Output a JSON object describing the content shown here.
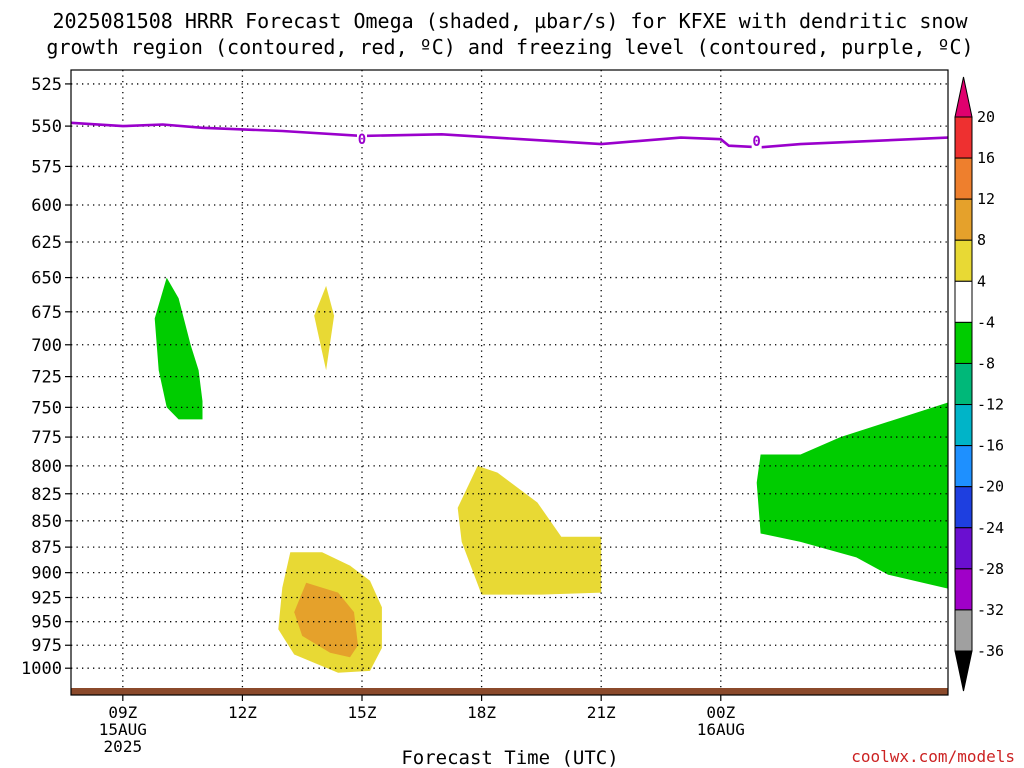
{
  "chart_data": {
    "type": "contour",
    "title_lines": [
      "2025081508 HRRR Forecast Omega (shaded, µbar/s) for KFXE with dendritic snow",
      "growth region (contoured, red, ºC) and freezing level (contoured, purple, ºC)"
    ],
    "xlabel": "Forecast Time (UTC)",
    "credit": "coolwx.com/models",
    "x_domain_hours": [
      7.7,
      29.7
    ],
    "x_ticks": [
      {
        "hour": 9,
        "lines": [
          "09Z",
          "15AUG",
          "2025"
        ]
      },
      {
        "hour": 12,
        "lines": [
          "12Z"
        ]
      },
      {
        "hour": 15,
        "lines": [
          "15Z"
        ]
      },
      {
        "hour": 18,
        "lines": [
          "18Z"
        ]
      },
      {
        "hour": 21,
        "lines": [
          "21Z"
        ]
      },
      {
        "hour": 24,
        "lines": [
          "00Z",
          "16AUG"
        ]
      }
    ],
    "y_axis": {
      "scale": "log",
      "range_mb": [
        1030,
        517
      ],
      "ticks_mb": [
        525,
        550,
        575,
        600,
        625,
        650,
        675,
        700,
        725,
        750,
        775,
        800,
        825,
        850,
        875,
        900,
        925,
        950,
        975,
        1000
      ]
    },
    "grid": true,
    "colorbar": {
      "labels": [
        "20",
        "16",
        "12",
        "8",
        "4",
        "-4",
        "-8",
        "-12",
        "-16",
        "-20",
        "-24",
        "-28",
        "-32",
        "-36"
      ],
      "colors": [
        "#e0006e",
        "#ee3030",
        "#ee7f2d",
        "#e5a12b",
        "#e8d934",
        "#ffffff",
        "#00cc00",
        "#00b879",
        "#00b4c8",
        "#1e90ff",
        "#1e3fe0",
        "#6a0fd0",
        "#a000c8",
        "#a0a0a0",
        "#000000"
      ]
    },
    "freezing_level": {
      "color": "#9a00cc",
      "contour_label": "0",
      "label_points": [
        [
          15.0,
          558
        ],
        [
          24.9,
          559
        ]
      ],
      "points": [
        [
          7.7,
          548
        ],
        [
          9.0,
          550
        ],
        [
          10.0,
          549
        ],
        [
          11.0,
          551
        ],
        [
          13.0,
          553
        ],
        [
          15.0,
          556
        ],
        [
          17.0,
          555
        ],
        [
          19.0,
          558
        ],
        [
          21.0,
          561
        ],
        [
          22.0,
          559
        ],
        [
          23.0,
          557
        ],
        [
          24.0,
          558
        ],
        [
          24.2,
          562
        ],
        [
          25.0,
          563
        ],
        [
          26.0,
          561
        ],
        [
          29.7,
          557
        ]
      ]
    },
    "omega_regions": [
      {
        "label": "-8",
        "color": "#00cc00",
        "points": [
          [
            10.1,
            650
          ],
          [
            10.4,
            665
          ],
          [
            10.7,
            700
          ],
          [
            10.9,
            720
          ],
          [
            11.0,
            745
          ],
          [
            11.0,
            760
          ],
          [
            10.4,
            760
          ],
          [
            10.1,
            750
          ],
          [
            9.9,
            720
          ],
          [
            9.8,
            680
          ]
        ]
      },
      {
        "label": "4",
        "color": "#e8d934",
        "points": [
          [
            14.1,
            656
          ],
          [
            14.3,
            678
          ],
          [
            14.1,
            720
          ],
          [
            13.8,
            678
          ]
        ]
      },
      {
        "label": "4",
        "color": "#e8d934",
        "points": [
          [
            17.9,
            800
          ],
          [
            18.4,
            806
          ],
          [
            19.4,
            833
          ],
          [
            20.0,
            865
          ],
          [
            21.0,
            865
          ],
          [
            21.0,
            920
          ],
          [
            19.5,
            922
          ],
          [
            18.0,
            922
          ],
          [
            17.5,
            870
          ],
          [
            17.4,
            838
          ]
        ]
      },
      {
        "label": "4",
        "color": "#e8d934",
        "points": [
          [
            13.2,
            880
          ],
          [
            14.0,
            880
          ],
          [
            14.7,
            893
          ],
          [
            15.2,
            908
          ],
          [
            15.5,
            935
          ],
          [
            15.5,
            978
          ],
          [
            15.2,
            1003
          ],
          [
            14.4,
            1005
          ],
          [
            13.3,
            985
          ],
          [
            12.9,
            958
          ],
          [
            13.0,
            915
          ]
        ]
      },
      {
        "label": "8",
        "color": "#e5a12b",
        "points": [
          [
            13.6,
            910
          ],
          [
            14.4,
            920
          ],
          [
            14.8,
            940
          ],
          [
            14.9,
            975
          ],
          [
            14.7,
            988
          ],
          [
            14.2,
            983
          ],
          [
            13.5,
            965
          ],
          [
            13.3,
            940
          ]
        ]
      },
      {
        "label": "-8",
        "color": "#00cc00",
        "points": [
          [
            25.0,
            790
          ],
          [
            25.8,
            790
          ],
          [
            26.0,
            790
          ],
          [
            27.0,
            775
          ],
          [
            29.7,
            746
          ],
          [
            29.7,
            916
          ],
          [
            28.2,
            902
          ],
          [
            27.4,
            885
          ],
          [
            26.0,
            870
          ],
          [
            25.0,
            862
          ],
          [
            24.9,
            815
          ]
        ]
      }
    ],
    "terrain_strip": {
      "color": "#8b4a2b"
    }
  }
}
